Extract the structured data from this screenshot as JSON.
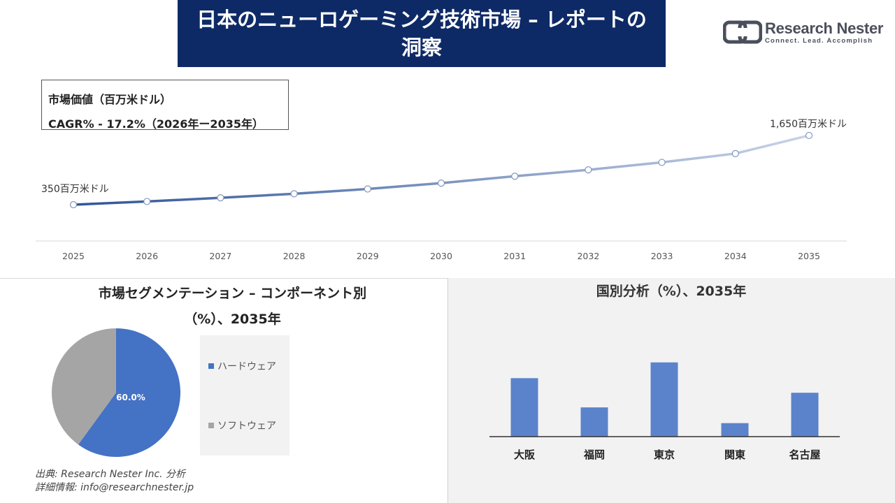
{
  "title": "日本のニューロゲーミング技術市場 – レポートの洞察",
  "logo": {
    "name": "Research Nester",
    "tagline": "Connect. Lead. Accomplish",
    "color": "#4a4f5c"
  },
  "info_box": {
    "line1": "市場価値（百万米ドル）",
    "line2": "CAGR% - 17.2%（2026年ー2035年）"
  },
  "pie_section_title_line1": "市場セグメンテーション – コンポーネント別",
  "pie_section_title_line2": "（%）、2035年",
  "bar_section_title": "国別分析（%）、2035年",
  "source_line1": "出典: Research Nester Inc. 分析",
  "source_line2": "詳細情報: info@researchnester.jp",
  "chart_data": [
    {
      "type": "line",
      "x": [
        "2025",
        "2026",
        "2027",
        "2028",
        "2029",
        "2030",
        "2031",
        "2032",
        "2033",
        "2034",
        "2035"
      ],
      "values": [
        350,
        410,
        480,
        555,
        645,
        755,
        885,
        1005,
        1145,
        1310,
        1650
      ],
      "start_label": "350百万米ドル",
      "end_label": "1,650百万米ドル",
      "line_color_start": "#2f5597",
      "line_color_end": "#c9d3e8"
    },
    {
      "type": "pie",
      "labels": [
        "ハードウェア",
        "ソフトウェア"
      ],
      "values": [
        60,
        40
      ],
      "colors": [
        "#4472c4",
        "#a5a5a5"
      ],
      "data_labels": [
        "60.0%",
        ""
      ]
    },
    {
      "type": "bar",
      "categories": [
        "大阪",
        "福岡",
        "東京",
        "関東",
        "名古屋"
      ],
      "values": [
        26,
        13,
        33,
        6,
        19.5
      ],
      "color": "#5b83cc",
      "ylim": [
        0,
        40
      ]
    }
  ]
}
